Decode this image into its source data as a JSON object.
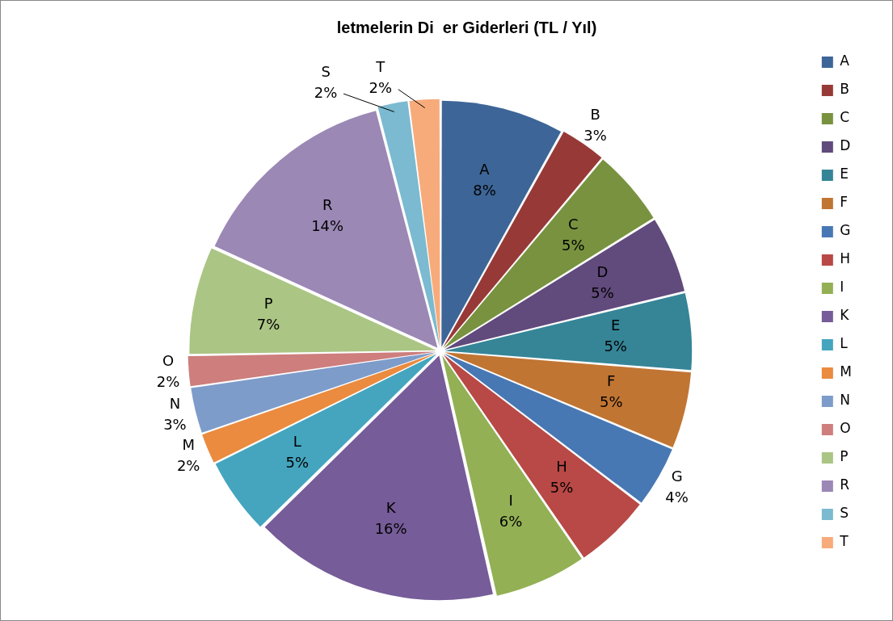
{
  "chart_data": {
    "type": "pie",
    "title": "letmelerin Di  er Giderleri (TL / Yıl)",
    "categories": [
      "A",
      "B",
      "C",
      "D",
      "E",
      "F",
      "G",
      "H",
      "I",
      "K",
      "L",
      "M",
      "N",
      "O",
      "P",
      "R",
      "S",
      "T"
    ],
    "values": [
      8,
      3,
      5,
      5,
      5,
      5,
      4,
      5,
      6,
      16,
      5,
      2,
      3,
      2,
      7,
      14,
      2,
      2
    ],
    "colors": [
      "#3d6597",
      "#973a37",
      "#78923f",
      "#614a7c",
      "#358597",
      "#c17533",
      "#4778b4",
      "#b84946",
      "#93b055",
      "#765c98",
      "#45a5bf",
      "#ea8b3f",
      "#7e9cca",
      "#cd7e7d",
      "#abc584",
      "#9b88b5",
      "#7bbad0",
      "#f7ab7b"
    ],
    "value_labels": [
      "8%",
      "3%",
      "5%",
      "5%",
      "5%",
      "5%",
      "4%",
      "5%",
      "6%",
      "16%",
      "5%",
      "2%",
      "3%",
      "2%",
      "7%",
      "14%",
      "2%",
      "2%"
    ],
    "legend": "right"
  }
}
